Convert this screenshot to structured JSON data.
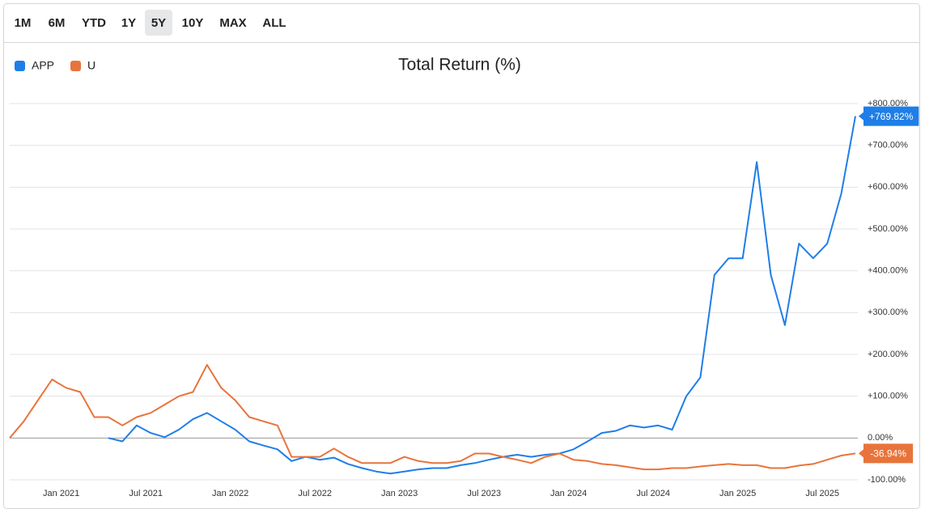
{
  "range_buttons": [
    "1M",
    "6M",
    "YTD",
    "1Y",
    "5Y",
    "10Y",
    "MAX",
    "ALL"
  ],
  "active_range": "5Y",
  "chart_data": {
    "type": "line",
    "title": "Total Return (%)",
    "legend": "top-left",
    "grid": true,
    "x": [
      "2020-09",
      "2020-10",
      "2020-11",
      "2020-12",
      "2021-01",
      "2021-02",
      "2021-03",
      "2021-04",
      "2021-05",
      "2021-06",
      "2021-07",
      "2021-08",
      "2021-09",
      "2021-10",
      "2021-11",
      "2021-12",
      "2022-01",
      "2022-02",
      "2022-03",
      "2022-04",
      "2022-05",
      "2022-06",
      "2022-07",
      "2022-08",
      "2022-09",
      "2022-10",
      "2022-11",
      "2022-12",
      "2023-01",
      "2023-02",
      "2023-03",
      "2023-04",
      "2023-05",
      "2023-06",
      "2023-07",
      "2023-08",
      "2023-09",
      "2023-10",
      "2023-11",
      "2023-12",
      "2024-01",
      "2024-02",
      "2024-03",
      "2024-04",
      "2024-05",
      "2024-06",
      "2024-07",
      "2024-08",
      "2024-09",
      "2024-10",
      "2024-11",
      "2024-12",
      "2025-01",
      "2025-02",
      "2025-03",
      "2025-04",
      "2025-05",
      "2025-06",
      "2025-07",
      "2025-08",
      "2025-09"
    ],
    "xlim": [
      "2020-09",
      "2025-09"
    ],
    "xticks": [
      {
        "value": "2021-01",
        "label": "Jan 2021"
      },
      {
        "value": "2021-07",
        "label": "Jul 2021"
      },
      {
        "value": "2022-01",
        "label": "Jan 2022"
      },
      {
        "value": "2022-07",
        "label": "Jul 2022"
      },
      {
        "value": "2023-01",
        "label": "Jan 2023"
      },
      {
        "value": "2023-07",
        "label": "Jul 2023"
      },
      {
        "value": "2024-01",
        "label": "Jan 2024"
      },
      {
        "value": "2024-07",
        "label": "Jul 2024"
      },
      {
        "value": "2025-01",
        "label": "Jan 2025"
      },
      {
        "value": "2025-07",
        "label": "Jul 2025"
      }
    ],
    "ylim": [
      -100,
      800
    ],
    "yticks": [
      {
        "value": -100,
        "label": "-100.00%"
      },
      {
        "value": 0,
        "label": "0.00%"
      },
      {
        "value": 100,
        "label": "+100.00%"
      },
      {
        "value": 200,
        "label": "+200.00%"
      },
      {
        "value": 300,
        "label": "+300.00%"
      },
      {
        "value": 400,
        "label": "+400.00%"
      },
      {
        "value": 500,
        "label": "+500.00%"
      },
      {
        "value": 600,
        "label": "+600.00%"
      },
      {
        "value": 700,
        "label": "+700.00%"
      },
      {
        "value": 800,
        "label": "+800.00%"
      }
    ],
    "series": [
      {
        "name": "APP",
        "color": "#1f7ee8",
        "values": [
          null,
          null,
          null,
          null,
          null,
          null,
          null,
          0,
          -8,
          30,
          12,
          2,
          20,
          45,
          60,
          40,
          20,
          -8,
          -18,
          -27,
          -55,
          -45,
          -52,
          -47,
          -62,
          -72,
          -80,
          -85,
          -80,
          -75,
          -72,
          -72,
          -65,
          -60,
          -52,
          -45,
          -40,
          -45,
          -40,
          -37,
          -27,
          -8,
          12,
          17,
          30,
          25,
          30,
          20,
          100,
          145,
          390,
          430,
          430,
          660,
          390,
          270,
          465,
          430,
          465,
          585,
          769.82
        ],
        "value_labels": [
          null,
          null,
          null,
          null,
          null,
          null,
          null,
          null,
          null,
          null,
          null,
          null,
          null,
          null,
          null,
          null,
          null,
          null,
          null,
          null,
          null,
          null,
          null,
          null,
          null,
          null,
          null,
          null,
          null,
          null,
          null,
          null,
          null,
          null,
          null,
          null,
          null,
          null,
          null,
          null,
          null,
          null,
          null,
          null,
          null,
          null,
          null,
          null,
          null,
          null,
          null,
          null,
          null,
          null,
          null,
          null,
          null,
          null,
          null,
          null,
          "+769.82%"
        ]
      },
      {
        "name": "U",
        "color": "#e8743b",
        "values": [
          0,
          40,
          90,
          140,
          120,
          110,
          50,
          50,
          30,
          50,
          60,
          80,
          100,
          110,
          175,
          120,
          90,
          50,
          40,
          30,
          -45,
          -45,
          -45,
          -25,
          -45,
          -60,
          -60,
          -60,
          -45,
          -55,
          -60,
          -60,
          -55,
          -37,
          -37,
          -45,
          -52,
          -60,
          -45,
          -37,
          -52,
          -55,
          -62,
          -65,
          -70,
          -75,
          -75,
          -72,
          -72,
          -68,
          -65,
          -62,
          -65,
          -65,
          -72,
          -72,
          -66,
          -62,
          -52,
          -42,
          -36.94
        ],
        "value_labels": [
          null,
          null,
          null,
          null,
          null,
          null,
          null,
          null,
          null,
          null,
          null,
          null,
          null,
          null,
          null,
          null,
          null,
          null,
          null,
          null,
          null,
          null,
          null,
          null,
          null,
          null,
          null,
          null,
          null,
          null,
          null,
          null,
          null,
          null,
          null,
          null,
          null,
          null,
          null,
          null,
          null,
          null,
          null,
          null,
          null,
          null,
          null,
          null,
          null,
          null,
          null,
          null,
          null,
          null,
          null,
          null,
          null,
          null,
          null,
          null,
          "-36.94%"
        ]
      }
    ]
  }
}
